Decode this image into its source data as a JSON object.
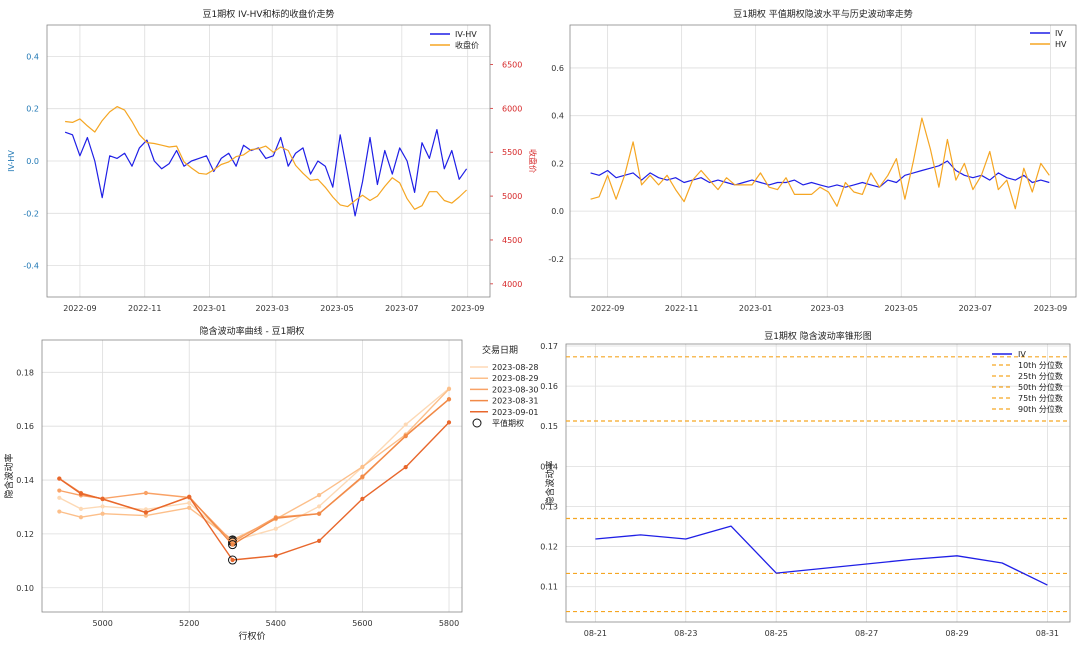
{
  "chart_data": [
    {
      "type": "line",
      "title": "豆1期权 IV-HV和标的收盘价走势",
      "ylabel": "IV-HV",
      "y2label": "收盘价",
      "ylim": [
        -0.52,
        0.52
      ],
      "y2lim": [
        3850,
        6950
      ],
      "y_ticks": [
        "0.4",
        "0.2",
        "0.0",
        "-0.2",
        "-0.4"
      ],
      "y2_ticks": [
        "6500",
        "6000",
        "5500",
        "5000",
        "4500",
        "4000"
      ],
      "x_ticks": [
        "2022-09",
        "2022-11",
        "2023-01",
        "2023-03",
        "2023-05",
        "2023-07",
        "2023-09"
      ],
      "grid": true,
      "legend": "top-right",
      "series": [
        {
          "name": "IV-HV",
          "color": "#1f1fe6",
          "axis": "left",
          "x": [
            "2022-08-18",
            "2022-08-25",
            "2022-09-01",
            "2022-09-08",
            "2022-09-15",
            "2022-09-22",
            "2022-09-29",
            "2022-10-06",
            "2022-10-13",
            "2022-10-20",
            "2022-10-27",
            "2022-11-03",
            "2022-11-10",
            "2022-11-17",
            "2022-11-24",
            "2022-12-01",
            "2022-12-08",
            "2022-12-15",
            "2022-12-22",
            "2022-12-29",
            "2023-01-05",
            "2023-01-12",
            "2023-01-19",
            "2023-01-26",
            "2023-02-02",
            "2023-02-09",
            "2023-02-16",
            "2023-02-23",
            "2023-03-02",
            "2023-03-09",
            "2023-03-16",
            "2023-03-23",
            "2023-03-30",
            "2023-04-06",
            "2023-04-13",
            "2023-04-20",
            "2023-04-27",
            "2023-05-04",
            "2023-05-11",
            "2023-05-18",
            "2023-05-25",
            "2023-06-01",
            "2023-06-08",
            "2023-06-15",
            "2023-06-22",
            "2023-06-29",
            "2023-07-06",
            "2023-07-13",
            "2023-07-20",
            "2023-07-27",
            "2023-08-03",
            "2023-08-10",
            "2023-08-17",
            "2023-08-24",
            "2023-08-31"
          ],
          "y": [
            0.11,
            0.1,
            0.02,
            0.09,
            0.0,
            -0.14,
            0.02,
            0.01,
            0.03,
            -0.02,
            0.05,
            0.08,
            0.0,
            -0.03,
            -0.01,
            0.04,
            -0.02,
            0.0,
            0.01,
            0.02,
            -0.04,
            0.01,
            0.03,
            -0.02,
            0.06,
            0.04,
            0.05,
            0.01,
            0.02,
            0.09,
            -0.02,
            0.03,
            0.05,
            -0.05,
            0.0,
            -0.02,
            -0.1,
            0.1,
            -0.05,
            -0.21,
            -0.08,
            0.09,
            -0.09,
            0.04,
            -0.05,
            0.05,
            0.0,
            -0.12,
            0.07,
            0.01,
            0.12,
            -0.03,
            0.04,
            -0.07,
            -0.03
          ]
        },
        {
          "name": "收盘价",
          "color": "#f5a623",
          "axis": "right",
          "x": [
            "2022-08-18",
            "2022-08-25",
            "2022-09-01",
            "2022-09-08",
            "2022-09-15",
            "2022-09-22",
            "2022-09-29",
            "2022-10-06",
            "2022-10-13",
            "2022-10-20",
            "2022-10-27",
            "2022-11-03",
            "2022-11-10",
            "2022-11-17",
            "2022-11-24",
            "2022-12-01",
            "2022-12-08",
            "2022-12-15",
            "2022-12-22",
            "2022-12-29",
            "2023-01-05",
            "2023-01-12",
            "2023-01-19",
            "2023-01-26",
            "2023-02-02",
            "2023-02-09",
            "2023-02-16",
            "2023-02-23",
            "2023-03-02",
            "2023-03-09",
            "2023-03-16",
            "2023-03-23",
            "2023-03-30",
            "2023-04-06",
            "2023-04-13",
            "2023-04-20",
            "2023-04-27",
            "2023-05-04",
            "2023-05-11",
            "2023-05-18",
            "2023-05-25",
            "2023-06-01",
            "2023-06-08",
            "2023-06-15",
            "2023-06-22",
            "2023-06-29",
            "2023-07-06",
            "2023-07-13",
            "2023-07-20",
            "2023-07-27",
            "2023-08-03",
            "2023-08-10",
            "2023-08-17",
            "2023-08-24",
            "2023-08-31"
          ],
          "y": [
            5850,
            5840,
            5880,
            5800,
            5730,
            5860,
            5960,
            6020,
            5980,
            5850,
            5700,
            5610,
            5600,
            5580,
            5560,
            5570,
            5390,
            5320,
            5260,
            5250,
            5300,
            5360,
            5390,
            5450,
            5470,
            5530,
            5540,
            5570,
            5500,
            5560,
            5520,
            5350,
            5260,
            5180,
            5190,
            5100,
            4990,
            4900,
            4880,
            4950,
            5010,
            4950,
            5000,
            5110,
            5210,
            5150,
            4970,
            4850,
            4890,
            5050,
            5050,
            4950,
            4920,
            4990,
            5070
          ]
        }
      ]
    },
    {
      "type": "line",
      "title": "豆1期权 平值期权隐波水平与历史波动率走势",
      "ylim": [
        -0.36,
        0.78
      ],
      "y_ticks": [
        "0.6",
        "0.4",
        "0.2",
        "0.0",
        "-0.2"
      ],
      "x_ticks": [
        "2022-09",
        "2022-11",
        "2023-01",
        "2023-03",
        "2023-05",
        "2023-07",
        "2023-09"
      ],
      "grid": true,
      "legend": "top-right",
      "series": [
        {
          "name": "IV",
          "color": "#1f1fe6",
          "x": [
            "2022-08-18",
            "2022-08-25",
            "2022-09-01",
            "2022-09-08",
            "2022-09-15",
            "2022-09-22",
            "2022-09-29",
            "2022-10-06",
            "2022-10-13",
            "2022-10-20",
            "2022-10-27",
            "2022-11-03",
            "2022-11-10",
            "2022-11-17",
            "2022-11-24",
            "2022-12-01",
            "2022-12-08",
            "2022-12-15",
            "2022-12-22",
            "2022-12-29",
            "2023-01-05",
            "2023-01-12",
            "2023-01-19",
            "2023-01-26",
            "2023-02-02",
            "2023-02-09",
            "2023-02-16",
            "2023-02-23",
            "2023-03-02",
            "2023-03-09",
            "2023-03-16",
            "2023-03-23",
            "2023-03-30",
            "2023-04-06",
            "2023-04-13",
            "2023-04-20",
            "2023-04-27",
            "2023-05-04",
            "2023-05-11",
            "2023-05-18",
            "2023-05-25",
            "2023-06-01",
            "2023-06-08",
            "2023-06-15",
            "2023-06-22",
            "2023-06-29",
            "2023-07-06",
            "2023-07-13",
            "2023-07-20",
            "2023-07-27",
            "2023-08-03",
            "2023-08-10",
            "2023-08-17",
            "2023-08-24",
            "2023-08-31"
          ],
          "y": [
            0.16,
            0.15,
            0.17,
            0.14,
            0.15,
            0.16,
            0.13,
            0.16,
            0.14,
            0.13,
            0.14,
            0.12,
            0.13,
            0.14,
            0.12,
            0.13,
            0.12,
            0.11,
            0.12,
            0.13,
            0.12,
            0.11,
            0.12,
            0.12,
            0.13,
            0.11,
            0.12,
            0.11,
            0.1,
            0.11,
            0.1,
            0.11,
            0.12,
            0.11,
            0.1,
            0.13,
            0.12,
            0.15,
            0.16,
            0.17,
            0.18,
            0.19,
            0.21,
            0.17,
            0.15,
            0.14,
            0.15,
            0.13,
            0.16,
            0.14,
            0.13,
            0.15,
            0.12,
            0.13,
            0.12
          ]
        },
        {
          "name": "HV",
          "color": "#f5a623",
          "x": [
            "2022-08-18",
            "2022-08-25",
            "2022-09-01",
            "2022-09-08",
            "2022-09-15",
            "2022-09-22",
            "2022-09-29",
            "2022-10-06",
            "2022-10-13",
            "2022-10-20",
            "2022-10-27",
            "2022-11-03",
            "2022-11-10",
            "2022-11-17",
            "2022-11-24",
            "2022-12-01",
            "2022-12-08",
            "2022-12-15",
            "2022-12-22",
            "2022-12-29",
            "2023-01-05",
            "2023-01-12",
            "2023-01-19",
            "2023-01-26",
            "2023-02-02",
            "2023-02-09",
            "2023-02-16",
            "2023-02-23",
            "2023-03-02",
            "2023-03-09",
            "2023-03-16",
            "2023-03-23",
            "2023-03-30",
            "2023-04-06",
            "2023-04-13",
            "2023-04-20",
            "2023-04-27",
            "2023-05-04",
            "2023-05-11",
            "2023-05-18",
            "2023-05-25",
            "2023-06-01",
            "2023-06-08",
            "2023-06-15",
            "2023-06-22",
            "2023-06-29",
            "2023-07-06",
            "2023-07-13",
            "2023-07-20",
            "2023-07-27",
            "2023-08-03",
            "2023-08-10",
            "2023-08-17",
            "2023-08-24",
            "2023-08-31"
          ],
          "y": [
            0.05,
            0.06,
            0.15,
            0.05,
            0.15,
            0.29,
            0.11,
            0.15,
            0.11,
            0.15,
            0.09,
            0.04,
            0.13,
            0.17,
            0.13,
            0.09,
            0.14,
            0.11,
            0.11,
            0.11,
            0.16,
            0.1,
            0.09,
            0.14,
            0.07,
            0.07,
            0.07,
            0.1,
            0.08,
            0.02,
            0.12,
            0.08,
            0.07,
            0.16,
            0.1,
            0.15,
            0.22,
            0.05,
            0.21,
            0.39,
            0.26,
            0.1,
            0.3,
            0.13,
            0.2,
            0.09,
            0.15,
            0.25,
            0.09,
            0.13,
            0.01,
            0.18,
            0.08,
            0.2,
            0.15
          ]
        }
      ]
    },
    {
      "type": "line",
      "title": "隐含波动率曲线 - 豆1期权",
      "xlabel": "行权价",
      "ylabel": "隐含波动率",
      "xlim": [
        4860,
        5830
      ],
      "ylim": [
        0.091,
        0.192
      ],
      "x_ticks": [
        5000,
        5200,
        5400,
        5600,
        5800
      ],
      "y_ticks": [
        0.1,
        0.12,
        0.14,
        0.16,
        0.18
      ],
      "grid": true,
      "legend_title": "交易日期",
      "legend": "top-right",
      "atm_label": "平值期权",
      "atm_strike": 5300,
      "strikes": [
        4900,
        4950,
        5000,
        5100,
        5200,
        5300,
        5400,
        5500,
        5600,
        5700,
        5800
      ],
      "series": [
        {
          "name": "2023-08-28",
          "color": "#fdd9b5",
          "values": [
            0.1334,
            0.1293,
            0.1302,
            0.1291,
            0.1315,
            0.1174,
            0.1219,
            0.1302,
            0.1448,
            0.1606,
            0.174
          ]
        },
        {
          "name": "2023-08-29",
          "color": "#fcbf8a",
          "values": [
            0.1283,
            0.1262,
            0.1275,
            0.1268,
            0.1297,
            0.1178,
            0.1255,
            0.1344,
            0.1449,
            0.1569,
            0.1738
          ]
        },
        {
          "name": "2023-08-30",
          "color": "#f9a266",
          "values": [
            0.1361,
            0.1343,
            0.1331,
            0.1352,
            0.1335,
            0.117,
            0.1262,
            0.1275,
            0.141,
            0.1565,
            0.17
          ]
        },
        {
          "name": "2023-08-31",
          "color": "#f18a48",
          "values": [
            0.1406,
            0.1352,
            0.1329,
            0.1279,
            0.1338,
            0.116,
            0.1258,
            0.1275,
            0.1413,
            0.1563,
            0.17
          ]
        },
        {
          "name": "2023-09-01",
          "color": "#e8672c",
          "values": [
            0.1405,
            0.1349,
            0.133,
            0.128,
            0.1337,
            0.1103,
            0.1119,
            0.1174,
            0.133,
            0.1448,
            0.1614
          ]
        }
      ]
    },
    {
      "type": "line",
      "title": "豆1期权 隐含波动率锥形图",
      "ylabel": "隐含波动率",
      "ylim": [
        0.1012,
        0.1705
      ],
      "y_ticks": [
        0.11,
        0.12,
        0.13,
        0.14,
        0.15,
        0.16,
        0.17
      ],
      "x_ticks": [
        "08-21",
        "08-23",
        "08-25",
        "08-27",
        "08-29",
        "08-31"
      ],
      "grid": true,
      "legend": "top-right",
      "x": [
        "08-21",
        "08-22",
        "08-23",
        "08-24",
        "08-25",
        "08-28",
        "08-29",
        "08-30",
        "08-31"
      ],
      "x_day": [
        21,
        22,
        23,
        24,
        25,
        28,
        29,
        30,
        31
      ],
      "series": [
        {
          "name": "IV",
          "color": "#1f1fe6",
          "values": [
            0.1219,
            0.1229,
            0.1219,
            0.1251,
            0.1134,
            0.1168,
            0.1177,
            0.1159,
            0.1104
          ]
        }
      ],
      "percentiles": [
        {
          "name": "10th 分位数",
          "value": 0.1038
        },
        {
          "name": "25th 分位数",
          "value": 0.1133
        },
        {
          "name": "50th 分位数",
          "value": 0.127
        },
        {
          "name": "75th 分位数",
          "value": 0.1513
        },
        {
          "name": "90th 分位数",
          "value": 0.1673
        }
      ],
      "percentile_color": "#f5a623"
    }
  ]
}
